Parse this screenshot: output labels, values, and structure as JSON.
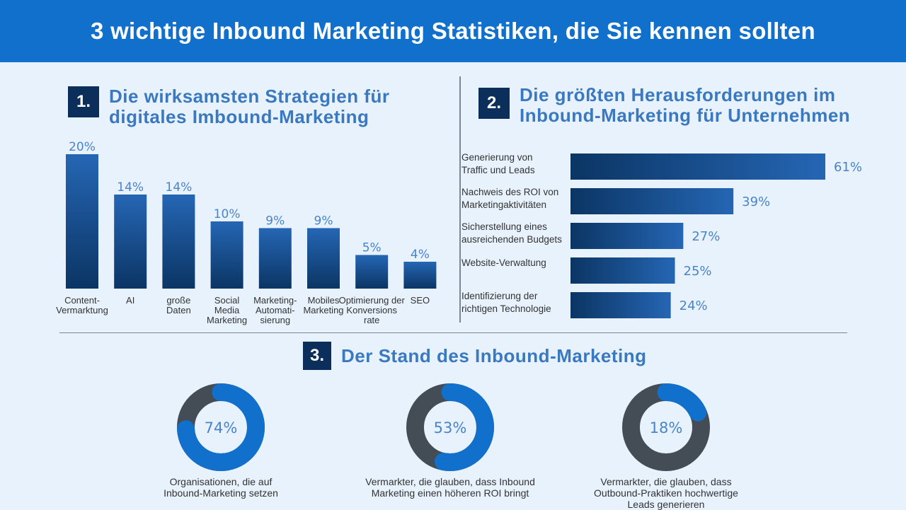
{
  "header": {
    "title": "3 wichtige Inbound Marketing Statistiken, die Sie kennen sollten"
  },
  "sections": [
    {
      "number": "1.",
      "title_lines": [
        "Die wirksamsten Strategien für",
        "digitales Imbound-Marketing"
      ]
    },
    {
      "number": "2.",
      "title_lines": [
        "Die größten Herausforderungen im",
        "Inbound-Marketing für Unternehmen"
      ]
    },
    {
      "number": "3.",
      "title_lines": [
        "Der Stand des Inbound-Marketing"
      ]
    }
  ],
  "colors": {
    "header": "#1170cc",
    "bar_dark": "#0b3564",
    "bar_light": "#2566b4",
    "donut_fill": "#1170cc",
    "donut_rest": "#444c55",
    "value_text": "#4a84c8"
  },
  "chart_data": [
    {
      "type": "bar",
      "orientation": "vertical",
      "categories": [
        [
          "Content-",
          "Vermarktung"
        ],
        [
          "AI"
        ],
        [
          "große",
          "Daten"
        ],
        [
          "Social",
          "Media",
          "Marketing"
        ],
        [
          "Marketing-",
          "Automati-",
          "sierung"
        ],
        [
          "Mobiles",
          "Marketing"
        ],
        [
          "Optimierung der",
          "Konversions",
          "rate"
        ],
        [
          "SEO"
        ]
      ],
      "values": [
        20,
        14,
        14,
        10,
        9,
        9,
        5,
        4
      ],
      "labels": [
        "20%",
        "14%",
        "14%",
        "10%",
        "9%",
        "9%",
        "5%",
        "4%"
      ],
      "unit": "%"
    },
    {
      "type": "bar",
      "orientation": "horizontal",
      "categories": [
        [
          "Generierung von",
          "Traffic und Leads"
        ],
        [
          "Nachweis des ROI von",
          "Marketingaktivitäten"
        ],
        [
          "Sicherstellung eines",
          "ausreichenden Budgets"
        ],
        [
          "Website-Verwaltung"
        ],
        [
          "Identifizierung der",
          "richtigen Technologie"
        ]
      ],
      "values": [
        61,
        39,
        27,
        25,
        24
      ],
      "labels": [
        "61%",
        "39%",
        "27%",
        "25%",
        "24%"
      ],
      "unit": "%"
    },
    {
      "type": "pie",
      "style": "donut",
      "items": [
        {
          "value": 74,
          "label": "74%",
          "caption": [
            "Organisationen, die auf",
            "Inbound-Marketing setzen"
          ]
        },
        {
          "value": 53,
          "label": "53%",
          "caption": [
            "Vermarkter, die glauben, dass Inbound",
            "Marketing einen höheren ROI bringt"
          ]
        },
        {
          "value": 18,
          "label": "18%",
          "caption": [
            "Vermarkter, die glauben, dass",
            "Outbound-Praktiken hochwertige",
            "Leads generieren"
          ]
        }
      ]
    }
  ]
}
